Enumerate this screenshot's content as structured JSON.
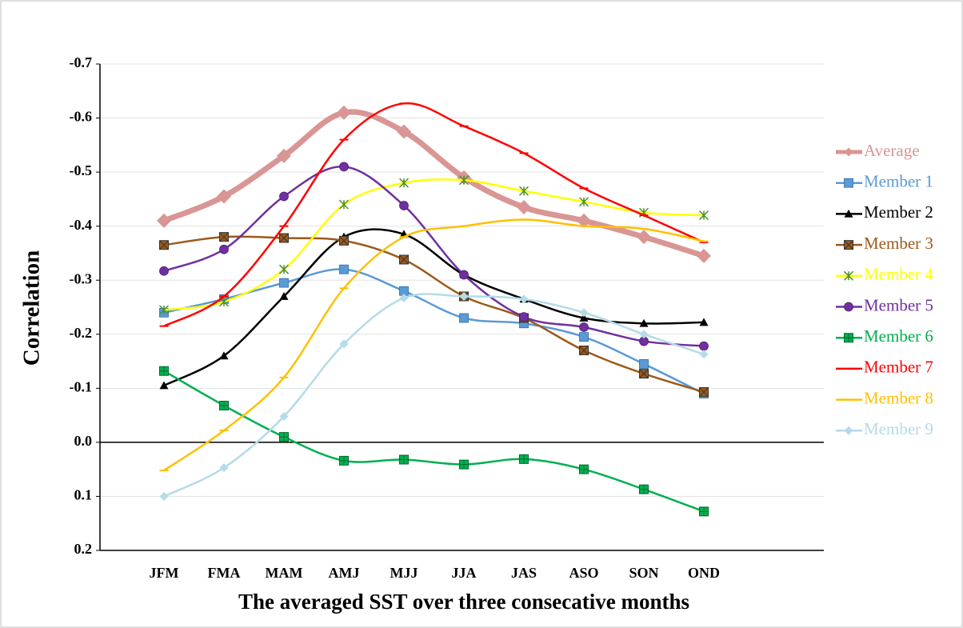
{
  "chart_data": {
    "type": "line",
    "y_label": "Correlation",
    "x_label": "The averaged SST over three consecative months",
    "categories": [
      "JFM",
      "FMA",
      "MAM",
      "AMJ",
      "MJJ",
      "JJA",
      "JAS",
      "ASO",
      "SON",
      "OND"
    ],
    "ylim": [
      -0.7,
      0.2
    ],
    "y_inverted": true,
    "yticks": [
      -0.7,
      -0.6,
      -0.5,
      -0.4,
      -0.3,
      -0.2,
      -0.1,
      {
        "value": 0,
        "label": "0.0"
      },
      0.1,
      0.2
    ],
    "grid": true,
    "legend": "right",
    "series": [
      {
        "name": "Average",
        "color": "#d99694",
        "marker": "diamond",
        "width": 7,
        "values": [
          -0.41,
          -0.455,
          -0.53,
          -0.61,
          -0.575,
          -0.49,
          -0.435,
          -0.41,
          -0.38,
          -0.345
        ]
      },
      {
        "name": "Member 1",
        "color": "#5b9bd5",
        "marker": "square",
        "width": 2.5,
        "values": [
          -0.24,
          -0.265,
          -0.295,
          -0.32,
          -0.28,
          -0.23,
          -0.22,
          -0.195,
          -0.145,
          -0.09
        ]
      },
      {
        "name": "Member 2",
        "color": "#000000",
        "marker": "triangle",
        "width": 2.5,
        "values": [
          -0.105,
          -0.16,
          -0.27,
          -0.38,
          -0.385,
          -0.31,
          -0.265,
          -0.23,
          -0.22,
          -0.222
        ]
      },
      {
        "name": "Member 3",
        "color": "#9c5a1a",
        "marker": "square-x",
        "width": 2.5,
        "values": [
          -0.365,
          -0.38,
          -0.378,
          -0.373,
          -0.338,
          -0.27,
          -0.23,
          -0.17,
          -0.127,
          -0.093
        ]
      },
      {
        "name": "Member 4",
        "color": "#ffff00",
        "marker": "star",
        "width": 2.5,
        "values": [
          -0.245,
          -0.26,
          -0.32,
          -0.44,
          -0.48,
          -0.485,
          -0.465,
          -0.445,
          -0.425,
          -0.42
        ]
      },
      {
        "name": "Member 5",
        "color": "#7030a0",
        "marker": "circle",
        "width": 2.5,
        "values": [
          -0.317,
          -0.357,
          -0.455,
          -0.51,
          -0.438,
          -0.31,
          -0.232,
          -0.213,
          -0.187,
          -0.178
        ]
      },
      {
        "name": "Member 6",
        "color": "#00b050",
        "marker": "square-plus",
        "width": 2.5,
        "values": [
          -0.132,
          -0.068,
          -0.01,
          0.034,
          0.032,
          0.041,
          0.031,
          0.05,
          0.087,
          0.128
        ]
      },
      {
        "name": "Member 7",
        "color": "#ff0000",
        "marker": "dash",
        "width": 2.5,
        "values": [
          -0.215,
          -0.27,
          -0.4,
          -0.56,
          -0.627,
          -0.585,
          -0.535,
          -0.47,
          -0.42,
          -0.37
        ]
      },
      {
        "name": "Member 8",
        "color": "#ffc000",
        "marker": "dash",
        "width": 2.5,
        "values": [
          0.052,
          -0.022,
          -0.12,
          -0.285,
          -0.38,
          -0.4,
          -0.412,
          -0.4,
          -0.395,
          -0.372
        ]
      },
      {
        "name": "Member 9",
        "color": "#b4dbe8",
        "marker": "diamond",
        "width": 2.5,
        "values": [
          0.1,
          0.047,
          -0.048,
          -0.182,
          -0.267,
          -0.27,
          -0.265,
          -0.24,
          -0.2,
          -0.163
        ]
      }
    ]
  }
}
